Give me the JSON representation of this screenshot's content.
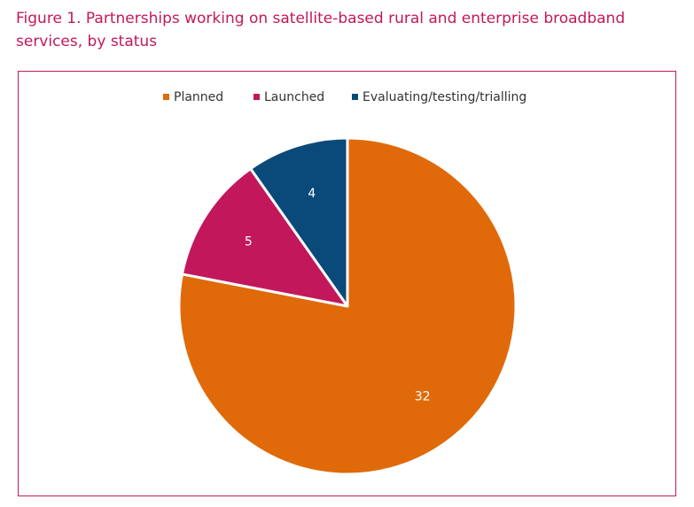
{
  "figure": {
    "title": "Figure 1. Partnerships working on satellite-based rural and enterprise broadband services, by status"
  },
  "chart_data": {
    "type": "pie",
    "title": "",
    "legend_position": "top",
    "categories": [
      "Planned",
      "Launched",
      "Evaluating/testing/trialling"
    ],
    "values": [
      32,
      5,
      4
    ],
    "data_labels": [
      "32",
      "5",
      "4"
    ],
    "colors": [
      "#e06a0a",
      "#c2185b",
      "#0a4a7a"
    ],
    "start": "12 o'clock",
    "direction": "clockwise"
  }
}
